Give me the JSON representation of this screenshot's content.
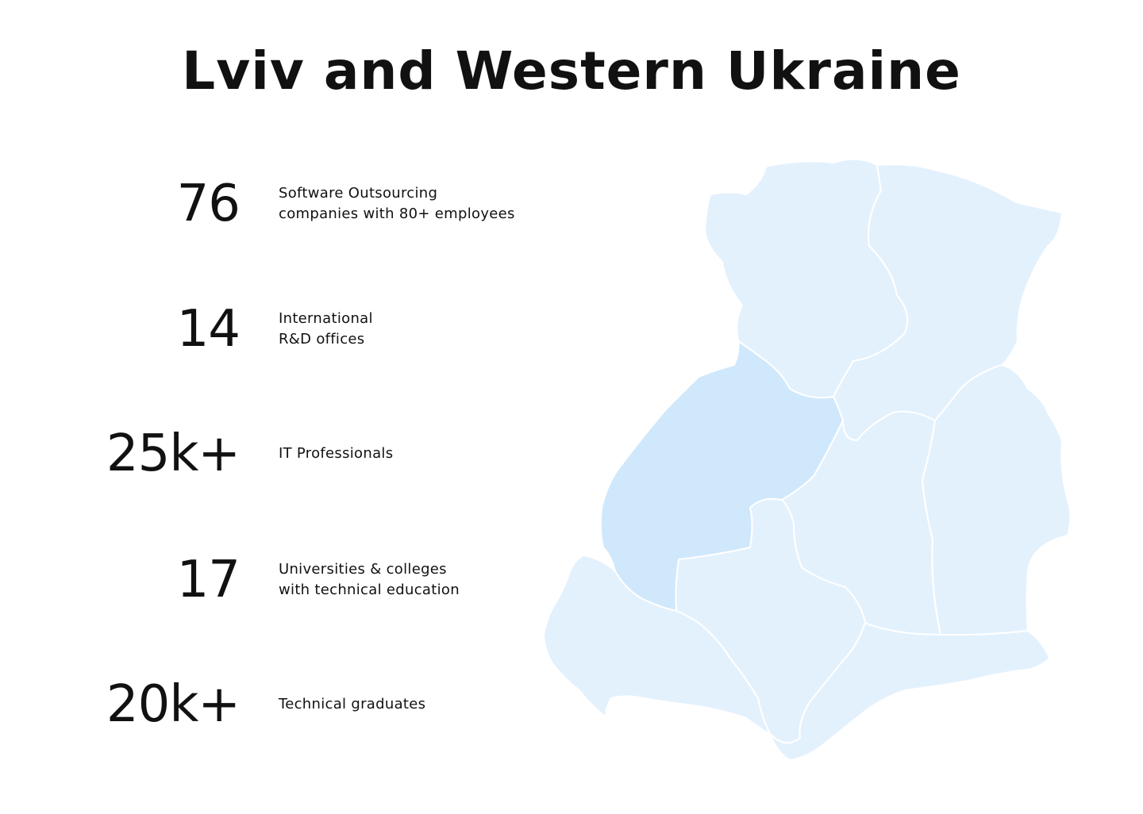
{
  "title": "Lviv and Western Ukraine",
  "stats": [
    {
      "value": "76",
      "lines": [
        "Software Outsourcing",
        "companies with 80+ employees"
      ]
    },
    {
      "value": "14",
      "lines": [
        "International",
        "R&D offices"
      ]
    },
    {
      "value": "25k+",
      "lines": [
        "IT Professionals"
      ]
    },
    {
      "value": "17",
      "lines": [
        "Universities & colleges",
        "with technical education"
      ]
    },
    {
      "value": "20k+",
      "lines": [
        "Technical graduates"
      ]
    }
  ],
  "map": {
    "region_color": "#e3f1fd",
    "highlight_color": "#d0e8fc",
    "border_color": "#ffffff"
  }
}
